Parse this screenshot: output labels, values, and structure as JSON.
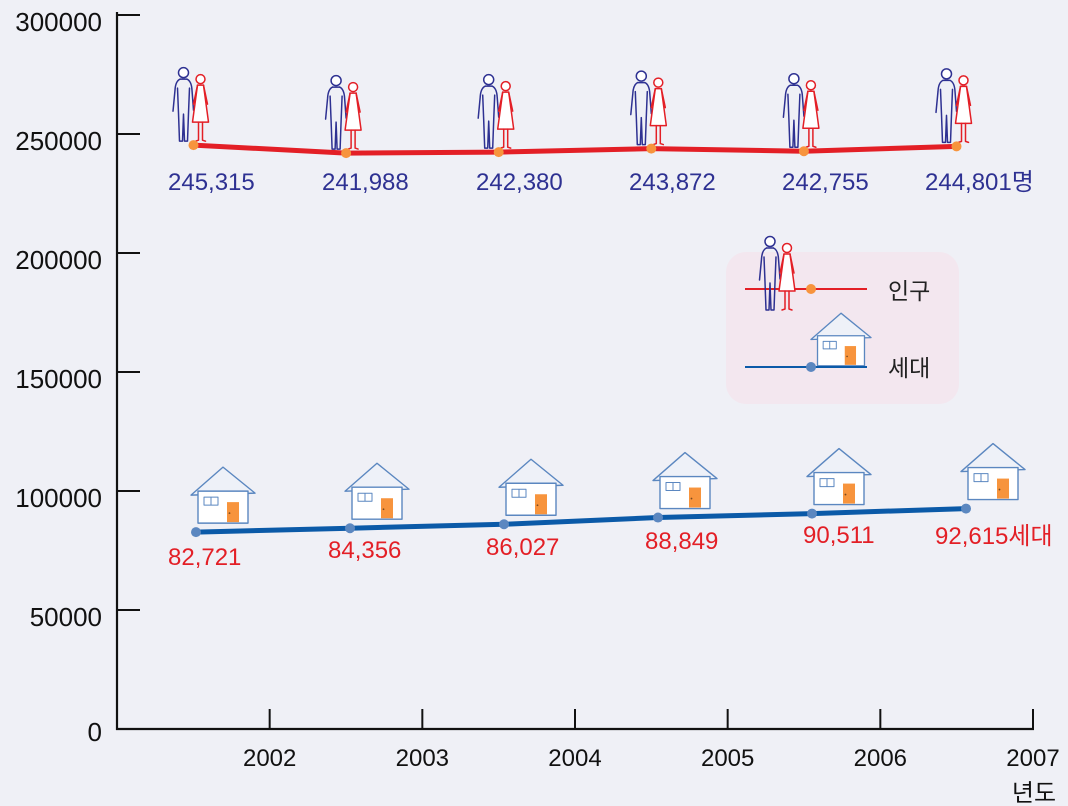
{
  "chart_data": {
    "type": "line",
    "x_ticks": [
      "2002",
      "2003",
      "2004",
      "2005",
      "2006",
      "2007"
    ],
    "x_unit": "년도",
    "y_ticks": [
      "0",
      "50000",
      "100000",
      "150000",
      "200000",
      "250000",
      "300000"
    ],
    "ylim": [
      0,
      300000
    ],
    "grid": false,
    "legend_position": "center-right",
    "series": [
      {
        "name": "인구",
        "values": [
          245315,
          241988,
          242380,
          243872,
          242755,
          244801
        ],
        "labels": [
          "245,315",
          "241,988",
          "242,380",
          "243,872",
          "242,755",
          "244,801명"
        ],
        "line_color": "#e31f26",
        "marker_color": "#f7943d",
        "label_color": "#2e3192",
        "icon": "person-pair-icon"
      },
      {
        "name": "세대",
        "values": [
          82721,
          84356,
          86027,
          88849,
          90511,
          92615
        ],
        "labels": [
          "82,721",
          "84,356",
          "86,027",
          "88,849",
          "90,511",
          "92,615세대"
        ],
        "line_color": "#0b5aa8",
        "marker_color": "#5b87c0",
        "label_color": "#e31f26",
        "icon": "house-icon"
      }
    ]
  },
  "colors": {
    "background": "#eff0f6",
    "axis": "#111111",
    "legend_background": "#f3e7ef"
  }
}
